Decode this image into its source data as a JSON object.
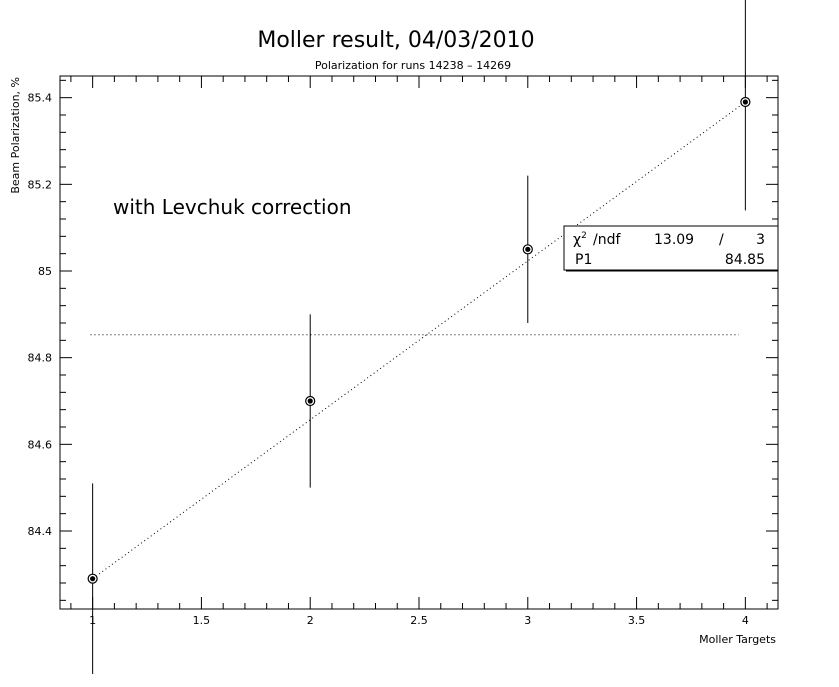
{
  "chart_data": {
    "type": "scatter",
    "title": "Moller result, 04/03/2010",
    "subtitle": "Polarization for runs 14238 – 14269",
    "xlabel": "Moller Targets",
    "ylabel": "Beam Polarization, %",
    "annotation": "with Levchuk correction",
    "xlim": [
      0.85,
      4.15
    ],
    "ylim": [
      84.22,
      85.45
    ],
    "x_ticks": [
      {
        "value": 1,
        "label": "1"
      },
      {
        "value": 1.5,
        "label": "1.5"
      },
      {
        "value": 2,
        "label": "2"
      },
      {
        "value": 2.5,
        "label": "2.5"
      },
      {
        "value": 3,
        "label": "3"
      },
      {
        "value": 3.5,
        "label": "3.5"
      },
      {
        "value": 4,
        "label": "4"
      }
    ],
    "y_ticks": [
      {
        "value": 84.4,
        "label": "84.4"
      },
      {
        "value": 84.6,
        "label": "84.6"
      },
      {
        "value": 84.8,
        "label": "84.8"
      },
      {
        "value": 85.0,
        "label": "85"
      },
      {
        "value": 85.2,
        "label": "85.2"
      },
      {
        "value": 85.4,
        "label": "85.4"
      }
    ],
    "points": [
      {
        "x": 1,
        "y": 84.29,
        "err": 0.22
      },
      {
        "x": 2,
        "y": 84.7,
        "err": 0.2
      },
      {
        "x": 3,
        "y": 85.05,
        "err": 0.17
      },
      {
        "x": 4,
        "y": 85.39,
        "err": 0.25
      }
    ],
    "fit_line": {
      "x_start": 0.99,
      "x_end": 3.97,
      "y": 84.853
    },
    "stats_box": {
      "chi2_label": "/ndf",
      "chi2_value": "13.09",
      "chi2_sep": "/",
      "ndf": "3",
      "p1_label": "P1",
      "p1_value": "84.85"
    }
  }
}
